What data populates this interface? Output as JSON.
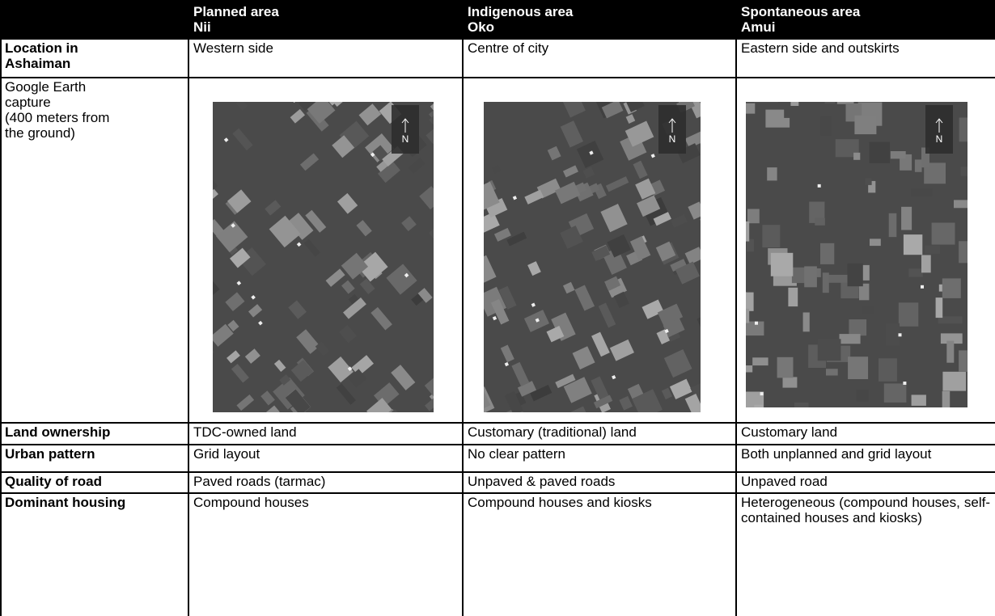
{
  "table": {
    "columns": [
      {
        "title": "Planned area",
        "name": "Nii"
      },
      {
        "title": "Indigenous area",
        "name": "Oko"
      },
      {
        "title": "Spontaneous area",
        "name": "Amui"
      }
    ],
    "location": {
      "label_lines": [
        "Location in",
        "Ashaiman"
      ],
      "cells": [
        "Western side",
        "Centre of city",
        "Eastern side and outskirts"
      ]
    },
    "capture": {
      "label_lines": [
        "Google Earth",
        "capture",
        "(400 meters from",
        "the ground)"
      ],
      "north_label": "N"
    },
    "rows": [
      {
        "label": "Land ownership",
        "cells": [
          "TDC-owned land",
          "Customary (traditional) land",
          "Customary land"
        ]
      },
      {
        "label": "Urban pattern",
        "cells": [
          "Grid layout",
          "No clear pattern",
          "Both unplanned and grid layout"
        ]
      },
      {
        "label": "Quality of road",
        "cells": [
          "Paved roads (tarmac)",
          "Unpaved & paved roads",
          "Unpaved road"
        ]
      },
      {
        "label": "Dominant housing",
        "cells": [
          "Compound houses",
          "Compound houses and kiosks",
          "Heterogeneous (compound houses, self-contained houses and kiosks)"
        ]
      }
    ]
  }
}
